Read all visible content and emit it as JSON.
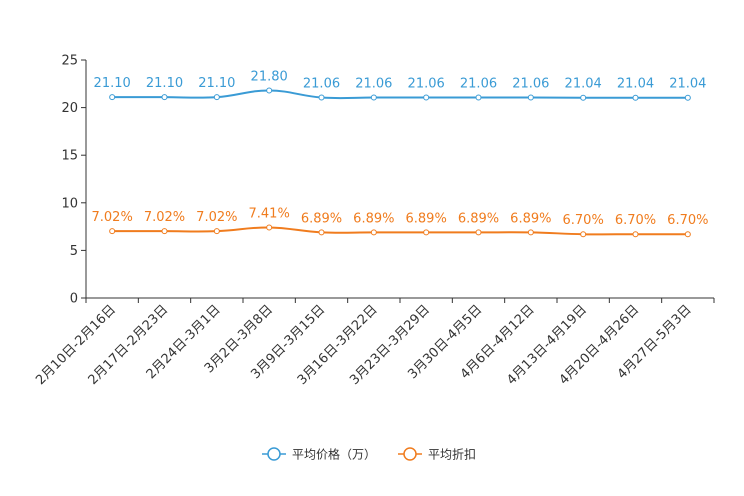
{
  "chart_data": {
    "type": "line",
    "title": "",
    "xlabel": "",
    "ylabel": "",
    "ylim": [
      0,
      25
    ],
    "yticks": [
      0,
      5,
      10,
      15,
      20,
      25
    ],
    "grid": false,
    "legend_position": "bottom-center",
    "categories": [
      "2月10日-2月16日",
      "2月17日-2月23日",
      "2月24日-3月1日",
      "3月2日-3月8日",
      "3月9日-3月15日",
      "3月16日-3月22日",
      "3月23日-3月29日",
      "3月30日-4月5日",
      "4月6日-4月12日",
      "4月13日-4月19日",
      "4月20日-4月26日",
      "4月27日-5月3日"
    ],
    "series": [
      {
        "name": "平均价格（万）",
        "color": "#3a9bd5",
        "values": [
          21.1,
          21.1,
          21.1,
          21.8,
          21.06,
          21.06,
          21.06,
          21.06,
          21.06,
          21.04,
          21.04,
          21.04
        ],
        "labels": [
          "21.10",
          "21.10",
          "21.10",
          "21.80",
          "21.06",
          "21.06",
          "21.06",
          "21.06",
          "21.06",
          "21.04",
          "21.04",
          "21.04"
        ]
      },
      {
        "name": "平均折扣",
        "color": "#f07c1e",
        "values": [
          7.02,
          7.02,
          7.02,
          7.41,
          6.89,
          6.89,
          6.89,
          6.89,
          6.89,
          6.7,
          6.7,
          6.7
        ],
        "labels": [
          "7.02%",
          "7.02%",
          "7.02%",
          "7.41%",
          "6.89%",
          "6.89%",
          "6.89%",
          "6.89%",
          "6.89%",
          "6.70%",
          "6.70%",
          "6.70%"
        ]
      }
    ]
  }
}
